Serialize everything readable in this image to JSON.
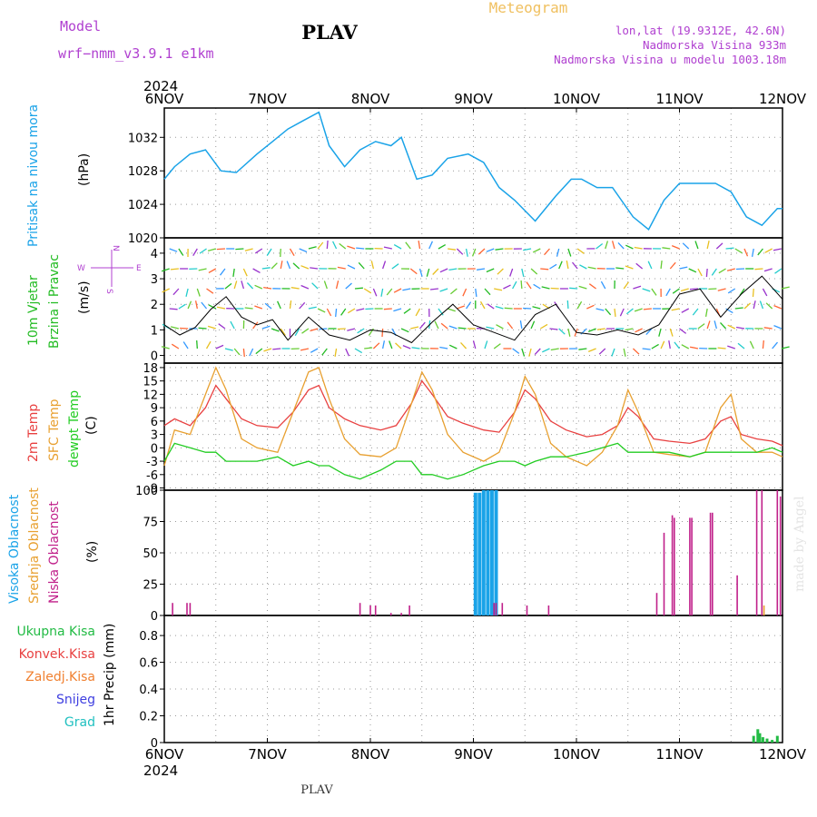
{
  "header": {
    "model_label": "Model",
    "model_name": "wrf−nmm_v3.9.1  e1km",
    "station": "PLAV",
    "product": "Meteogram",
    "lonlat": "lon,lat (19.9312E, 42.6N)",
    "altitude": "Nadmorska Visina 933m",
    "model_altitude": "Nadmorska Visina u modelu 1003.18m"
  },
  "footer": {
    "station": "PLAV"
  },
  "credit": "made by Angel",
  "colors": {
    "pressure": "#1aa3e8",
    "wind": "#22bb22",
    "temp2m": "#e84040",
    "sfc_temp": "#e8a030",
    "dewpoint": "#22cc22",
    "cloud_high": "#1aa3e8",
    "cloud_mid": "#e8a030",
    "cloud_low": "#c0208a",
    "precip_total": "#22bb44",
    "precip_conv": "#e84040",
    "precip_frozen": "#f08030",
    "snow": "#4040e0",
    "grad": "#20c0c0",
    "model": "#b040d0"
  },
  "chart_data": [
    {
      "type": "line",
      "panel": "pressure",
      "ylabel_colored": "Pritisak na nivou mora",
      "ylabel": "(hPa)",
      "yticks": [
        1020,
        1024,
        1028,
        1032
      ],
      "ylim": [
        1020,
        1035.5
      ],
      "x": [
        0,
        0.1,
        0.25,
        0.4,
        0.55,
        0.7,
        0.9,
        1.05,
        1.2,
        1.35,
        1.5,
        1.6,
        1.75,
        1.9,
        2.05,
        2.2,
        2.3,
        2.45,
        2.6,
        2.75,
        2.95,
        3.1,
        3.25,
        3.4,
        3.6,
        3.8,
        3.95,
        4.05,
        4.2,
        4.35,
        4.55,
        4.7,
        4.85,
        5.0,
        5.2,
        5.35,
        5.5,
        5.65,
        5.8,
        5.95,
        6.0
      ],
      "series": [
        {
          "values": [
            1027,
            1028.5,
            1030,
            1030.5,
            1028,
            1027.8,
            1030,
            1031.5,
            1033,
            1034,
            1035,
            1031,
            1028.5,
            1030.5,
            1031.5,
            1031,
            1032,
            1027,
            1027.5,
            1029.5,
            1030,
            1029,
            1026,
            1024.5,
            1022,
            1025,
            1027,
            1027,
            1026,
            1026,
            1022.5,
            1021,
            1024.5,
            1026.5,
            1026.5,
            1026.5,
            1025.5,
            1022.5,
            1021.5,
            1023.5,
            1023.5
          ]
        }
      ],
      "grid": true
    },
    {
      "type": "line",
      "panel": "wind",
      "ylabel_colored": "10m Vjetar Brzina i Pravac",
      "ylabel": "(m/s)",
      "compass": {
        "n": "N",
        "s": "S",
        "e": "E",
        "w": "W"
      },
      "yticks": [
        0,
        1,
        2,
        3,
        4
      ],
      "ylim": [
        -0.3,
        4.6
      ],
      "x": [
        0,
        0.15,
        0.3,
        0.45,
        0.6,
        0.75,
        0.9,
        1.05,
        1.2,
        1.4,
        1.6,
        1.8,
        2.0,
        2.2,
        2.4,
        2.6,
        2.8,
        3.0,
        3.2,
        3.4,
        3.6,
        3.8,
        4.0,
        4.2,
        4.4,
        4.6,
        4.8,
        5.0,
        5.2,
        5.4,
        5.6,
        5.8,
        6.0
      ],
      "series": [
        {
          "name": "speed",
          "values": [
            1.2,
            0.8,
            1.1,
            1.8,
            2.3,
            1.5,
            1.2,
            1.4,
            0.6,
            1.5,
            0.8,
            0.6,
            1.0,
            0.9,
            0.5,
            1.3,
            2.0,
            1.2,
            0.9,
            0.6,
            1.6,
            2.0,
            0.9,
            0.8,
            1.0,
            0.8,
            1.2,
            2.4,
            2.6,
            1.5,
            2.4,
            3.1,
            2.2
          ]
        }
      ],
      "grid": true
    },
    {
      "type": "line",
      "panel": "temperature",
      "ylabel_colored": [
        "2m Temp",
        "SFC Temp",
        "dewpt Temp"
      ],
      "ylabel": "(C)",
      "yticks": [
        -9,
        -6,
        -3,
        0,
        3,
        6,
        9,
        12,
        15,
        18
      ],
      "ylim": [
        -9.5,
        19
      ],
      "x": [
        0,
        0.1,
        0.25,
        0.4,
        0.5,
        0.6,
        0.75,
        0.9,
        1.1,
        1.25,
        1.4,
        1.5,
        1.6,
        1.75,
        1.9,
        2.1,
        2.25,
        2.4,
        2.5,
        2.6,
        2.75,
        2.9,
        3.1,
        3.25,
        3.4,
        3.5,
        3.6,
        3.75,
        3.9,
        4.1,
        4.25,
        4.4,
        4.5,
        4.6,
        4.75,
        4.9,
        5.1,
        5.25,
        5.4,
        5.5,
        5.6,
        5.75,
        5.9,
        6.0
      ],
      "series": [
        {
          "name": "2m Temp",
          "values": [
            5,
            6.5,
            5,
            9,
            14,
            11,
            6.5,
            5,
            4.5,
            8,
            13,
            14,
            9,
            6.5,
            5,
            4,
            5,
            10,
            15,
            12,
            7,
            5.5,
            4,
            3.5,
            8,
            13,
            11,
            6,
            4,
            2.5,
            3,
            5,
            9,
            7,
            2,
            1.5,
            1,
            2,
            6,
            7,
            3,
            2,
            1.5,
            0.5
          ]
        },
        {
          "name": "SFC Temp",
          "values": [
            -4,
            4,
            3,
            12,
            18,
            13,
            2,
            0,
            -1,
            8,
            17,
            18,
            11,
            2,
            -1.5,
            -2,
            0,
            10,
            17,
            13,
            3,
            -1,
            -3,
            -1,
            8,
            16,
            12,
            1,
            -2,
            -4,
            -1,
            5,
            13,
            8,
            -1,
            -1.5,
            -2,
            -1,
            9,
            12,
            2,
            -1,
            -1,
            -2
          ]
        },
        {
          "name": "dewpt Temp",
          "values": [
            -3,
            1,
            0,
            -1,
            -1,
            -3,
            -3,
            -3,
            -2,
            -4,
            -3,
            -4,
            -4,
            -6,
            -7,
            -5,
            -3,
            -3,
            -6,
            -6,
            -7,
            -6,
            -4,
            -3,
            -3,
            -4,
            -3,
            -2,
            -2,
            -1,
            0,
            1,
            -1,
            -1,
            -1,
            -1,
            -2,
            -1,
            -1,
            -1,
            -1,
            -1,
            0,
            -1
          ]
        }
      ],
      "grid": true
    },
    {
      "type": "bar",
      "panel": "cloud",
      "ylabel_colored": [
        "Visoka Oblacnost",
        "Srednja Oblacnost",
        "Niska Oblacnost"
      ],
      "ylabel": "(%)",
      "yticks": [
        0,
        25,
        50,
        75,
        100
      ],
      "ylim": [
        0,
        100
      ],
      "series": [
        {
          "name": "Visoka Oblacnost",
          "x": [
            3.02,
            3.06,
            3.1,
            3.14,
            3.18,
            3.22
          ],
          "values": [
            98,
            98,
            100,
            100,
            100,
            100
          ]
        },
        {
          "name": "Niska Oblacnost",
          "x": [
            0.08,
            0.22,
            0.25,
            1.9,
            2.0,
            2.05,
            2.2,
            2.3,
            2.38,
            3.2,
            3.22,
            3.28,
            3.52,
            3.73,
            4.78,
            4.85,
            4.93,
            4.95,
            5.1,
            5.12,
            5.3,
            5.32,
            5.56,
            5.75,
            5.8,
            5.95,
            5.98
          ],
          "values": [
            10,
            10,
            10,
            10,
            8,
            8,
            2,
            2,
            8,
            10,
            10,
            10,
            8,
            8,
            18,
            66,
            80,
            78,
            78,
            78,
            82,
            82,
            32,
            100,
            100,
            100,
            95
          ]
        },
        {
          "name": "Srednja Oblacnost",
          "x": [
            5.82
          ],
          "values": [
            8
          ]
        }
      ],
      "grid": true
    },
    {
      "type": "bar",
      "panel": "precip",
      "ylabel_colored": [
        "Ukupna Kisa",
        "Konvek.Kisa",
        "Zaledj.Kisa",
        "Snijeg",
        "Grad"
      ],
      "ylabel": "1hr Precip (mm)",
      "yticks": [
        "0",
        "0.2",
        "0.4",
        "0.6",
        "0.8"
      ],
      "ylim": [
        0,
        0.95
      ],
      "series": [
        {
          "name": "Ukupna Kisa",
          "x": [
            5.72,
            5.76,
            5.78,
            5.81,
            5.85,
            5.9,
            5.95
          ],
          "values": [
            0.05,
            0.1,
            0.07,
            0.04,
            0.03,
            0.02,
            0.05
          ]
        }
      ],
      "grid": true
    }
  ],
  "xaxis": {
    "year_top": "2024",
    "year_bottom": "2024",
    "ticks": [
      "6NOV",
      "7NOV",
      "8NOV",
      "9NOV",
      "10NOV",
      "11NOV",
      "12NOV"
    ]
  }
}
